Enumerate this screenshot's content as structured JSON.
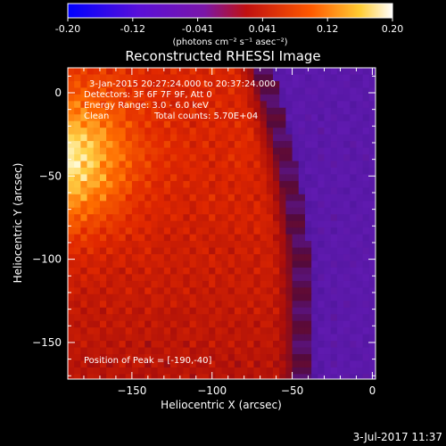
{
  "colorbar": {
    "ticks": [
      "-0.20",
      "-0.12",
      "-0.041",
      "0.041",
      "0.12",
      "0.20"
    ],
    "units": "(photons cm⁻² s⁻¹ asec⁻²)"
  },
  "chart_data": {
    "type": "heatmap",
    "title": "Reconstructed RHESSI Image",
    "xlabel": "Heliocentric X (arcsec)",
    "ylabel": "Heliocentric Y (arcsec)",
    "xlim": [
      -190,
      2
    ],
    "ylim": [
      -172,
      15
    ],
    "x_ticks": [
      -150,
      -100,
      -50,
      0
    ],
    "y_ticks": [
      0,
      -50,
      -100,
      -150
    ],
    "colorbar_range": [
      -0.2,
      0.2
    ],
    "colormap": "blue-purple-red-yellow-white",
    "limb": {
      "x_at_ymax": -80,
      "x_at_ymin": -55,
      "curve": 35
    },
    "peak": [
      -190,
      -40
    ],
    "annotations": {
      "time_range": "3-Jan-2015 20:27:24.000 to 20:37:24.000",
      "detectors": "Detectors: 3F 6F 7F 9F, Att 0",
      "energy": "Energy Range: 3.0 - 6.0 keV",
      "method": "Clean",
      "counts": "Total counts: 5.70E+04",
      "peak_text": "Position of Peak = [-190,-40]"
    },
    "footer_date": "3-Jul-2017 11:37"
  }
}
